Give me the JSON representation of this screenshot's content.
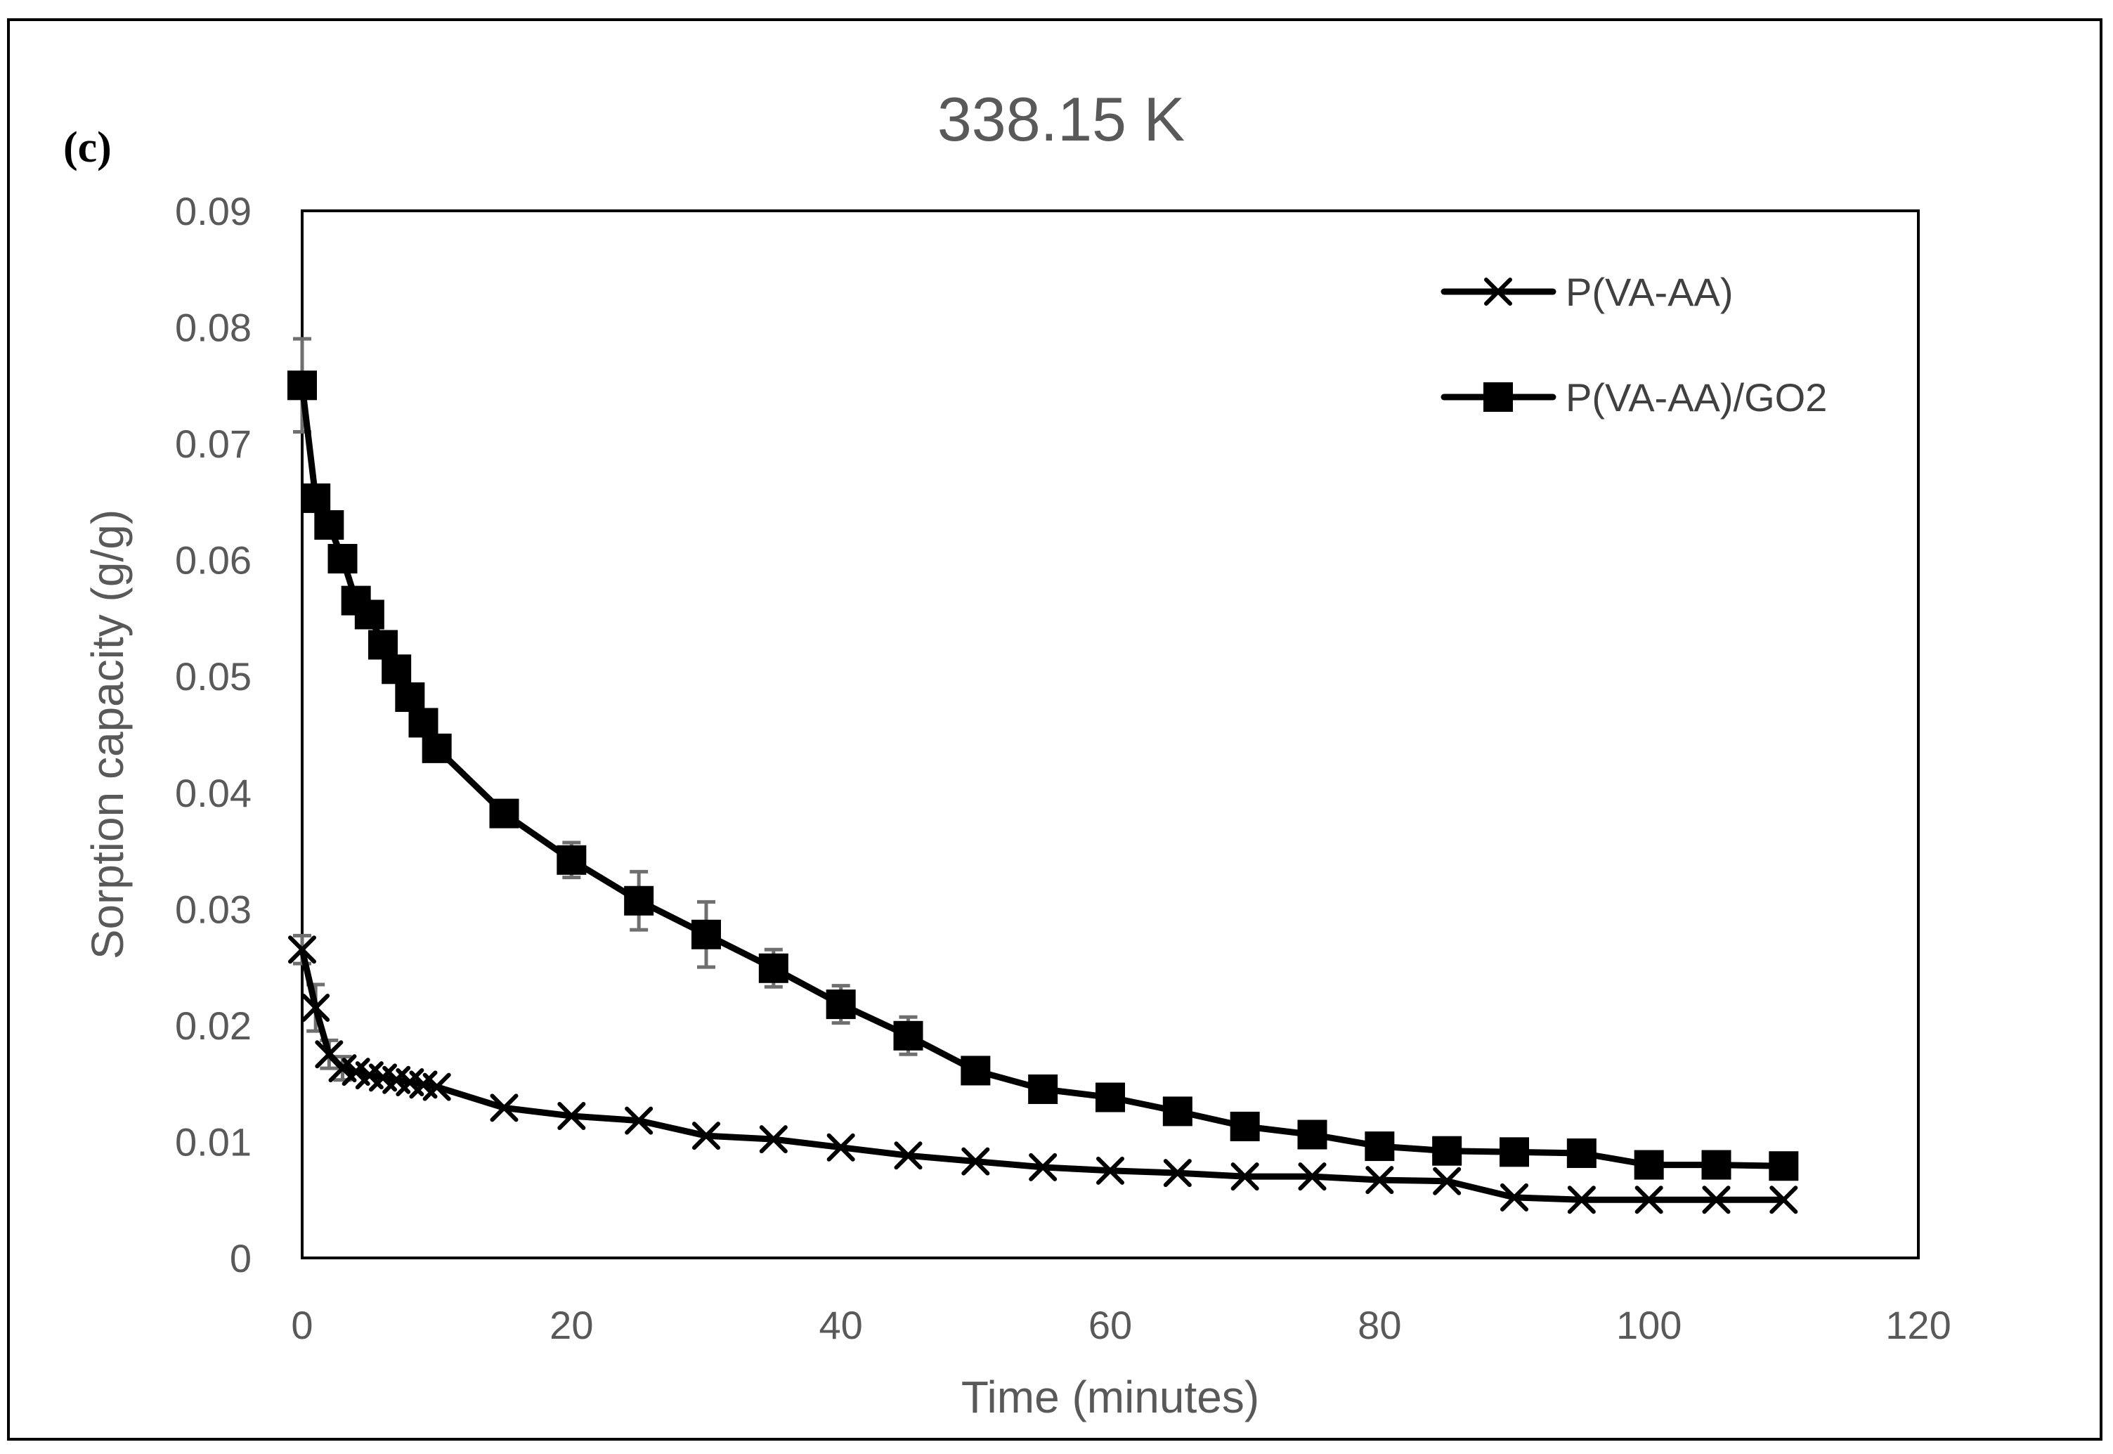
{
  "panel_label": "(c)",
  "chart_data": {
    "type": "line",
    "title": "338.15 K",
    "xlabel": "Time (minutes)",
    "ylabel": "Sorption capacity (g/g)",
    "xlim": [
      0,
      120
    ],
    "ylim": [
      0,
      0.09
    ],
    "x_ticks": [
      "0",
      "20",
      "40",
      "60",
      "80",
      "100",
      "120"
    ],
    "y_ticks": [
      "0",
      "0.01",
      "0.02",
      "0.03",
      "0.04",
      "0.05",
      "0.06",
      "0.07",
      "0.08",
      "0.09"
    ],
    "legend_position": "top-right",
    "series": [
      {
        "name": "P(VA-AA)",
        "marker": "x",
        "color": "#000000",
        "x": [
          0,
          1,
          2,
          3,
          4,
          5,
          6,
          7,
          8,
          9,
          10,
          15,
          20,
          25,
          30,
          35,
          40,
          45,
          50,
          55,
          60,
          65,
          70,
          75,
          80,
          85,
          90,
          95,
          100,
          105,
          110
        ],
        "y": [
          0.0265,
          0.0215,
          0.0175,
          0.0163,
          0.016,
          0.0157,
          0.0155,
          0.0153,
          0.0151,
          0.0149,
          0.0147,
          0.0129,
          0.0122,
          0.0118,
          0.0105,
          0.0102,
          0.0095,
          0.0088,
          0.0083,
          0.0078,
          0.0075,
          0.0073,
          0.007,
          0.007,
          0.0067,
          0.0066,
          0.0052,
          0.005,
          0.005,
          0.005,
          0.005
        ],
        "error": [
          0.0012,
          0.002,
          0.0012,
          0.001,
          0,
          0,
          0,
          0,
          0,
          0,
          0,
          0,
          0,
          0,
          0,
          0,
          0,
          0,
          0,
          0,
          0,
          0,
          0,
          0,
          0,
          0,
          0,
          0,
          0,
          0,
          0
        ]
      },
      {
        "name": "P(VA-AA)/GO2",
        "marker": "square",
        "color": "#000000",
        "x": [
          0,
          1,
          2,
          3,
          4,
          5,
          6,
          7,
          8,
          9,
          10,
          15,
          20,
          25,
          30,
          35,
          40,
          45,
          50,
          55,
          60,
          65,
          70,
          75,
          80,
          85,
          90,
          95,
          100,
          105,
          110
        ],
        "y": [
          0.075,
          0.0653,
          0.063,
          0.0601,
          0.0565,
          0.0553,
          0.0527,
          0.0506,
          0.0482,
          0.046,
          0.0438,
          0.0382,
          0.0342,
          0.0307,
          0.0278,
          0.0249,
          0.0218,
          0.0191,
          0.0161,
          0.0145,
          0.0138,
          0.0126,
          0.0113,
          0.0106,
          0.0096,
          0.0092,
          0.0091,
          0.009,
          0.008,
          0.008,
          0.0079
        ],
        "error": [
          0.004,
          0.001,
          0.001,
          0.001,
          0.001,
          0.001,
          0.001,
          0.001,
          0.001,
          0.001,
          0.001,
          0.001,
          0.0015,
          0.0025,
          0.0028,
          0.0016,
          0.0016,
          0.0016,
          0.001,
          0.0005,
          0.0005,
          0.0005,
          0.0005,
          0.0005,
          0.0005,
          0.0005,
          0.0005,
          0.0005,
          0.0005,
          0.0005,
          0.0005
        ]
      }
    ]
  }
}
